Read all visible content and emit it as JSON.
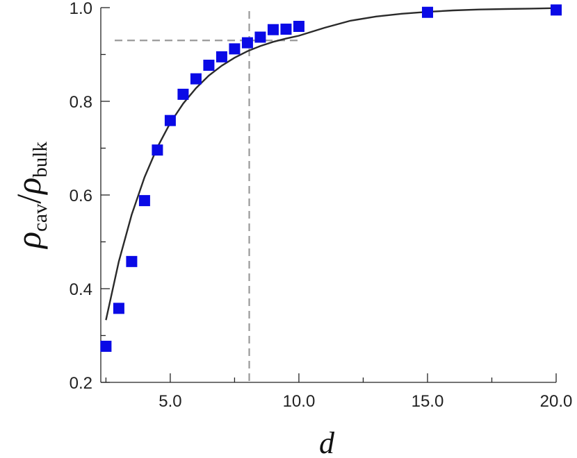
{
  "chart_data": {
    "type": "scatter",
    "title": "",
    "xlabel": "d",
    "ylabel": {
      "symbol": "ρ",
      "sub_numerator": "cav",
      "slash": "/",
      "sub_denominator": "bulk"
    },
    "xlim": [
      2.3,
      20.0
    ],
    "ylim": [
      0.2,
      1.0
    ],
    "x_ticks": [
      5.0,
      10.0,
      15.0,
      20.0
    ],
    "x_tick_labels": [
      "5.0",
      "10.0",
      "15.0",
      "20.0"
    ],
    "y_ticks": [
      0.2,
      0.4,
      0.6,
      0.8,
      1.0
    ],
    "y_tick_labels": [
      "0.2",
      "0.4",
      "0.6",
      "0.8",
      "1.0"
    ],
    "grid": false,
    "colors": {
      "points": "#0a0ae6",
      "fit_line": "#2a2a2a",
      "reference_lines": "#999999",
      "axes": "#222222"
    },
    "series": [
      {
        "marker": "square",
        "x": [
          2.5,
          3.0,
          3.5,
          4.0,
          4.5,
          5.0,
          5.5,
          6.0,
          6.5,
          7.0,
          7.5,
          8.0,
          8.5,
          9.0,
          9.5,
          10.0,
          15.0,
          20.0
        ],
        "y": [
          0.277,
          0.358,
          0.458,
          0.588,
          0.696,
          0.759,
          0.815,
          0.848,
          0.877,
          0.895,
          0.912,
          0.925,
          0.937,
          0.953,
          0.954,
          0.96,
          0.99,
          0.995
        ]
      }
    ],
    "fit_curve": {
      "x": [
        2.5,
        3.0,
        3.5,
        4.0,
        4.5,
        5.0,
        5.5,
        6.0,
        6.5,
        7.0,
        7.5,
        8.0,
        8.5,
        9.0,
        9.5,
        10.0,
        11.0,
        12.0,
        13.0,
        14.0,
        15.0,
        16.0,
        17.0,
        18.0,
        19.0,
        20.0
      ],
      "y": [
        0.333,
        0.458,
        0.558,
        0.638,
        0.702,
        0.754,
        0.795,
        0.828,
        0.855,
        0.876,
        0.893,
        0.907,
        0.918,
        0.927,
        0.934,
        0.94,
        0.957,
        0.972,
        0.981,
        0.987,
        0.991,
        0.994,
        0.996,
        0.997,
        0.998,
        0.999
      ]
    },
    "reference_lines": {
      "vertical_x": 8.07,
      "horizontal_y": 0.93
    }
  }
}
